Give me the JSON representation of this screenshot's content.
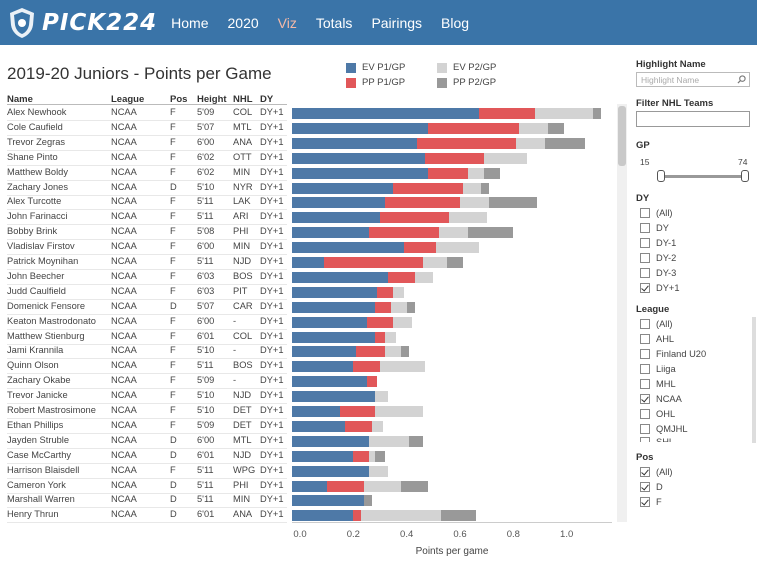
{
  "nav": {
    "brand": "PICK224",
    "links": [
      "Home",
      "2020",
      "Viz",
      "Totals",
      "Pairings",
      "Blog"
    ],
    "active": "Viz",
    "bg_color": "#3a74a8",
    "active_color": "#f4b9a7"
  },
  "title": "2019-20 Juniors - Points per Game",
  "legend": [
    {
      "label": "EV P1/GP",
      "color": "#4e79a7"
    },
    {
      "label": "PP P1/GP",
      "color": "#e15759"
    },
    {
      "label": "EV P2/GP",
      "color": "#d3d3d3"
    },
    {
      "label": "PP P2/GP",
      "color": "#999999"
    }
  ],
  "columns": [
    "Name",
    "League",
    "Pos",
    "Height",
    "NHL",
    "DY"
  ],
  "chart_data": {
    "type": "bar",
    "stacked": true,
    "orientation": "horizontal",
    "xlabel": "Points per game",
    "xlim": [
      0,
      1.2
    ],
    "xticks": [
      "0.0",
      "0.2",
      "0.4",
      "0.6",
      "0.8",
      "1.0"
    ],
    "series_names": [
      "EV P1/GP",
      "PP P1/GP",
      "EV P2/GP",
      "PP P2/GP"
    ],
    "rows": [
      {
        "name": "Alex Newhook",
        "league": "NCAA",
        "pos": "F",
        "height": "5'09",
        "nhl": "COL",
        "dy": "DY+1",
        "values": [
          0.7,
          0.21,
          0.22,
          0.03
        ]
      },
      {
        "name": "Cole Caufield",
        "league": "NCAA",
        "pos": "F",
        "height": "5'07",
        "nhl": "MTL",
        "dy": "DY+1",
        "values": [
          0.51,
          0.34,
          0.11,
          0.06
        ]
      },
      {
        "name": "Trevor Zegras",
        "league": "NCAA",
        "pos": "F",
        "height": "6'00",
        "nhl": "ANA",
        "dy": "DY+1",
        "values": [
          0.47,
          0.37,
          0.11,
          0.15
        ]
      },
      {
        "name": "Shane Pinto",
        "league": "NCAA",
        "pos": "F",
        "height": "6'02",
        "nhl": "OTT",
        "dy": "DY+1",
        "values": [
          0.5,
          0.22,
          0.16,
          0.0
        ]
      },
      {
        "name": "Matthew Boldy",
        "league": "NCAA",
        "pos": "F",
        "height": "6'02",
        "nhl": "MIN",
        "dy": "DY+1",
        "values": [
          0.51,
          0.15,
          0.06,
          0.06
        ]
      },
      {
        "name": "Zachary Jones",
        "league": "NCAA",
        "pos": "D",
        "height": "5'10",
        "nhl": "NYR",
        "dy": "DY+1",
        "values": [
          0.38,
          0.26,
          0.07,
          0.03
        ]
      },
      {
        "name": "Alex Turcotte",
        "league": "NCAA",
        "pos": "F",
        "height": "5'11",
        "nhl": "LAK",
        "dy": "DY+1",
        "values": [
          0.35,
          0.28,
          0.11,
          0.18
        ]
      },
      {
        "name": "John Farinacci",
        "league": "NCAA",
        "pos": "F",
        "height": "5'11",
        "nhl": "ARI",
        "dy": "DY+1",
        "values": [
          0.33,
          0.26,
          0.14,
          0.0
        ]
      },
      {
        "name": "Bobby Brink",
        "league": "NCAA",
        "pos": "F",
        "height": "5'08",
        "nhl": "PHI",
        "dy": "DY+1",
        "values": [
          0.29,
          0.26,
          0.11,
          0.17
        ]
      },
      {
        "name": "Vladislav Firstov",
        "league": "NCAA",
        "pos": "F",
        "height": "6'00",
        "nhl": "MIN",
        "dy": "DY+1",
        "values": [
          0.42,
          0.12,
          0.16,
          0.0
        ]
      },
      {
        "name": "Patrick Moynihan",
        "league": "NCAA",
        "pos": "F",
        "height": "5'11",
        "nhl": "NJD",
        "dy": "DY+1",
        "values": [
          0.12,
          0.37,
          0.09,
          0.06
        ]
      },
      {
        "name": "John Beecher",
        "league": "NCAA",
        "pos": "F",
        "height": "6'03",
        "nhl": "BOS",
        "dy": "DY+1",
        "values": [
          0.36,
          0.1,
          0.07,
          0.0
        ]
      },
      {
        "name": "Judd Caulfield",
        "league": "NCAA",
        "pos": "F",
        "height": "6'03",
        "nhl": "PIT",
        "dy": "DY+1",
        "values": [
          0.32,
          0.06,
          0.04,
          0.0
        ]
      },
      {
        "name": "Domenick Fensore",
        "league": "NCAA",
        "pos": "D",
        "height": "5'07",
        "nhl": "CAR",
        "dy": "DY+1",
        "values": [
          0.31,
          0.06,
          0.06,
          0.03
        ]
      },
      {
        "name": "Keaton Mastrodonato",
        "league": "NCAA",
        "pos": "F",
        "height": "6'00",
        "nhl": "-",
        "dy": "DY+1",
        "values": [
          0.28,
          0.1,
          0.07,
          0.0
        ]
      },
      {
        "name": "Matthew Stienburg",
        "league": "NCAA",
        "pos": "F",
        "height": "6'01",
        "nhl": "COL",
        "dy": "DY+1",
        "values": [
          0.31,
          0.04,
          0.04,
          0.0
        ]
      },
      {
        "name": "Jami Krannila",
        "league": "NCAA",
        "pos": "F",
        "height": "5'10",
        "nhl": "-",
        "dy": "DY+1",
        "values": [
          0.24,
          0.11,
          0.06,
          0.03
        ]
      },
      {
        "name": "Quinn Olson",
        "league": "NCAA",
        "pos": "F",
        "height": "5'11",
        "nhl": "BOS",
        "dy": "DY+1",
        "values": [
          0.23,
          0.1,
          0.17,
          0.0
        ]
      },
      {
        "name": "Zachary Okabe",
        "league": "NCAA",
        "pos": "F",
        "height": "5'09",
        "nhl": "-",
        "dy": "DY+1",
        "values": [
          0.28,
          0.04,
          0.0,
          0.0
        ]
      },
      {
        "name": "Trevor Janicke",
        "league": "NCAA",
        "pos": "F",
        "height": "5'10",
        "nhl": "NJD",
        "dy": "DY+1",
        "values": [
          0.31,
          0.0,
          0.05,
          0.0
        ]
      },
      {
        "name": "Robert Mastrosimone",
        "league": "NCAA",
        "pos": "F",
        "height": "5'10",
        "nhl": "DET",
        "dy": "DY+1",
        "values": [
          0.18,
          0.13,
          0.18,
          0.0
        ]
      },
      {
        "name": "Ethan Phillips",
        "league": "NCAA",
        "pos": "F",
        "height": "5'09",
        "nhl": "DET",
        "dy": "DY+1",
        "values": [
          0.2,
          0.1,
          0.04,
          0.0
        ]
      },
      {
        "name": "Jayden Struble",
        "league": "NCAA",
        "pos": "D",
        "height": "6'00",
        "nhl": "MTL",
        "dy": "DY+1",
        "values": [
          0.29,
          0.0,
          0.15,
          0.05
        ]
      },
      {
        "name": "Case McCarthy",
        "league": "NCAA",
        "pos": "D",
        "height": "6'01",
        "nhl": "NJD",
        "dy": "DY+1",
        "values": [
          0.23,
          0.06,
          0.02,
          0.04
        ]
      },
      {
        "name": "Harrison Blaisdell",
        "league": "NCAA",
        "pos": "F",
        "height": "5'11",
        "nhl": "WPG",
        "dy": "DY+1",
        "values": [
          0.29,
          0.0,
          0.07,
          0.0
        ]
      },
      {
        "name": "Cameron York",
        "league": "NCAA",
        "pos": "D",
        "height": "5'11",
        "nhl": "PHI",
        "dy": "DY+1",
        "values": [
          0.13,
          0.14,
          0.14,
          0.1
        ]
      },
      {
        "name": "Marshall Warren",
        "league": "NCAA",
        "pos": "D",
        "height": "5'11",
        "nhl": "MIN",
        "dy": "DY+1",
        "values": [
          0.27,
          0.0,
          0.0,
          0.03
        ]
      },
      {
        "name": "Henry Thrun",
        "league": "NCAA",
        "pos": "D",
        "height": "6'01",
        "nhl": "ANA",
        "dy": "DY+1",
        "values": [
          0.23,
          0.03,
          0.3,
          0.13
        ]
      }
    ]
  },
  "panel": {
    "highlight_title": "Highlight Name",
    "highlight_placeholder": "Highlight Name",
    "filter_title": "Filter NHL Teams",
    "gp_title": "GP",
    "gp_min": "15",
    "gp_max": "74",
    "dy_title": "DY",
    "dy_options": [
      {
        "label": "(All)",
        "checked": false
      },
      {
        "label": "DY",
        "checked": false
      },
      {
        "label": "DY-1",
        "checked": false
      },
      {
        "label": "DY-2",
        "checked": false
      },
      {
        "label": "DY-3",
        "checked": false
      },
      {
        "label": "DY+1",
        "checked": true
      }
    ],
    "league_title": "League",
    "league_options": [
      {
        "label": "(All)",
        "checked": false
      },
      {
        "label": "AHL",
        "checked": false
      },
      {
        "label": "Finland U20",
        "checked": false
      },
      {
        "label": "Liiga",
        "checked": false
      },
      {
        "label": "MHL",
        "checked": false
      },
      {
        "label": "NCAA",
        "checked": true
      },
      {
        "label": "OHL",
        "checked": false
      },
      {
        "label": "QMJHL",
        "checked": false
      },
      {
        "label": "SHL",
        "checked": false
      }
    ],
    "pos_title": "Pos",
    "pos_options": [
      {
        "label": "(All)",
        "checked": true
      },
      {
        "label": "D",
        "checked": true
      },
      {
        "label": "F",
        "checked": true
      }
    ]
  }
}
